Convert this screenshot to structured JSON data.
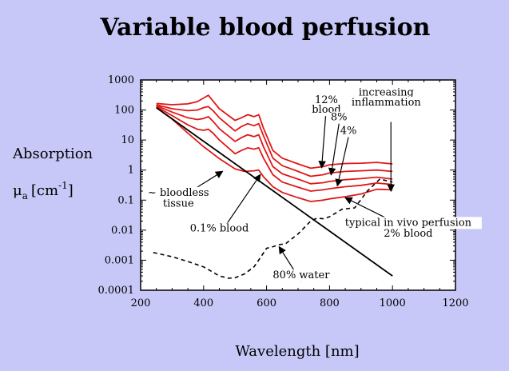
{
  "chart_data": {
    "type": "line",
    "title": "Variable blood perfusion",
    "xlabel": "Wavelength [nm]",
    "ylabel_main": "Absorption",
    "ylabel_symbol": "μ",
    "ylabel_sub": "a",
    "ylabel_unit_open": "[cm",
    "ylabel_sup": "-1",
    "ylabel_unit_close": "]",
    "xlim": [
      200,
      1200
    ],
    "ylim": [
      0.0001,
      1000
    ],
    "yscale": "log",
    "x_ticks": [
      200,
      400,
      600,
      800,
      1000,
      1200
    ],
    "x_tick_labels": [
      "200",
      "400",
      "600",
      "800",
      "1000",
      "1200"
    ],
    "y_ticks": [
      0.0001,
      0.001,
      0.01,
      0.1,
      1,
      10,
      100,
      1000
    ],
    "y_tick_labels": [
      "0.0001",
      "0.001",
      "0.01",
      "0.1",
      "1",
      "10",
      "100",
      "1000"
    ],
    "grid": false,
    "colors": {
      "blood": "#e01818",
      "bloodless": "#000000",
      "water": "#000000",
      "axes": "#000000",
      "plot_bg": "#ffffff",
      "page_bg": "#c8c8f8"
    },
    "series": [
      {
        "style": "solid",
        "color": "blood",
        "x": [
          250,
          300,
          350,
          380,
          400,
          415,
          430,
          450,
          500,
          520,
          540,
          560,
          575,
          590,
          620,
          650,
          700,
          740,
          780,
          800,
          850,
          900,
          950,
          1000
        ],
        "y": [
          165,
          150,
          160,
          190,
          250,
          310,
          200,
          110,
          45,
          55,
          70,
          60,
          70,
          25,
          4.5,
          2.5,
          1.6,
          1.15,
          1.3,
          1.5,
          1.65,
          1.7,
          1.8,
          1.6
        ]
      },
      {
        "style": "solid",
        "color": "blood",
        "x": [
          250,
          300,
          350,
          380,
          400,
          415,
          430,
          450,
          500,
          520,
          540,
          560,
          575,
          590,
          620,
          650,
          700,
          740,
          780,
          800,
          850,
          900,
          950,
          1000
        ],
        "y": [
          150,
          110,
          95,
          100,
          120,
          130,
          95,
          55,
          20,
          28,
          35,
          30,
          35,
          14,
          2.5,
          1.4,
          0.9,
          0.62,
          0.7,
          0.8,
          0.9,
          0.95,
          1.0,
          0.9
        ]
      },
      {
        "style": "solid",
        "color": "blood",
        "x": [
          250,
          300,
          350,
          380,
          400,
          415,
          430,
          450,
          500,
          520,
          540,
          560,
          575,
          590,
          620,
          650,
          700,
          740,
          780,
          800,
          850,
          900,
          950,
          1000
        ],
        "y": [
          140,
          85,
          55,
          48,
          52,
          60,
          42,
          24,
          9,
          12,
          15,
          13,
          15,
          6,
          1.3,
          0.75,
          0.5,
          0.35,
          0.38,
          0.42,
          0.48,
          0.52,
          0.58,
          0.5
        ]
      },
      {
        "style": "solid",
        "color": "blood",
        "x": [
          250,
          300,
          350,
          380,
          400,
          415,
          430,
          450,
          500,
          520,
          540,
          560,
          575,
          590,
          620,
          650,
          700,
          740,
          780,
          800,
          850,
          900,
          950,
          1000
        ],
        "y": [
          130,
          65,
          32,
          23,
          21,
          23,
          17,
          10,
          3.5,
          4.5,
          5.5,
          5,
          5.5,
          2.5,
          0.7,
          0.4,
          0.27,
          0.2,
          0.22,
          0.24,
          0.28,
          0.31,
          0.37,
          0.33
        ]
      },
      {
        "style": "solid",
        "color": "blood",
        "x": [
          250,
          300,
          350,
          400,
          430,
          450,
          500,
          530,
          560,
          575,
          590,
          620,
          650,
          700,
          740,
          780,
          800,
          850,
          900,
          950,
          1000
        ],
        "y": [
          120,
          50,
          17,
          6,
          3.5,
          2.4,
          1.1,
          0.9,
          0.95,
          1.0,
          0.6,
          0.28,
          0.18,
          0.12,
          0.09,
          0.1,
          0.11,
          0.13,
          0.16,
          0.23,
          0.22
        ]
      },
      {
        "style": "solid",
        "color": "bloodless",
        "x": [
          250,
          1000
        ],
        "y": [
          120,
          0.0003
        ]
      },
      {
        "style": "dashed",
        "color": "water",
        "x": [
          240,
          300,
          350,
          400,
          450,
          480,
          500,
          530,
          560,
          580,
          600,
          620,
          640,
          660,
          700,
          740,
          760,
          780,
          800,
          840,
          880,
          920,
          960,
          1000
        ],
        "y": [
          0.0018,
          0.0013,
          0.0009,
          0.0006,
          0.0003,
          0.00025,
          0.00026,
          0.00035,
          0.0006,
          0.0012,
          0.0025,
          0.0028,
          0.0033,
          0.0035,
          0.0075,
          0.02,
          0.025,
          0.024,
          0.028,
          0.05,
          0.055,
          0.2,
          0.5,
          0.4
        ]
      }
    ],
    "annotations": [
      {
        "text": "12%",
        "x": 790,
        "y": 170,
        "arrow_to": [
          775,
          1.2
        ]
      },
      {
        "text": "blood",
        "x": 790,
        "y": 80
      },
      {
        "text": "8%",
        "x": 830,
        "y": 45,
        "arrow_to": [
          805,
          0.7
        ]
      },
      {
        "text": "4%",
        "x": 860,
        "y": 16,
        "arrow_to": [
          825,
          0.3
        ]
      },
      {
        "text": "increasing",
        "x": 980,
        "y": 300,
        "arrow_to": [
          995,
          0.2
        ],
        "arrow_from": [
          995,
          40
        ]
      },
      {
        "text": "inflammation",
        "x": 980,
        "y": 140
      },
      {
        "text": "~ bloodless",
        "x": 320,
        "y": 0.14,
        "arrow_to": [
          460,
          0.9
        ]
      },
      {
        "text": "tissue",
        "x": 320,
        "y": 0.06
      },
      {
        "text": "0.1% blood",
        "x": 450,
        "y": 0.009,
        "arrow_to": [
          580,
          0.7
        ]
      },
      {
        "text": "typical in vivo perfusion",
        "x": 1050,
        "y": 0.014,
        "arrow_to": [
          850,
          0.12
        ]
      },
      {
        "text": "2% blood",
        "x": 1050,
        "y": 0.006
      },
      {
        "text": "80% water",
        "x": 710,
        "y": 0.00025,
        "arrow_to": [
          640,
          0.0028
        ]
      }
    ]
  }
}
